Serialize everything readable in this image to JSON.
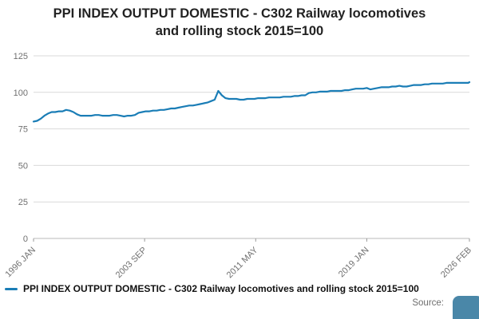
{
  "colors": {
    "series": "#1a7db6",
    "grid": "#d9d9d9",
    "axis": "#b8b8b8",
    "axis_text": "#707070",
    "logo": "#4a87a8"
  },
  "legend": {
    "label": "PPI INDEX OUTPUT DOMESTIC - C302 Railway locomotives and rolling stock 2015=100"
  },
  "footer": {
    "source_label": "Source:"
  },
  "chart_data": {
    "type": "line",
    "title": "PPI INDEX OUTPUT DOMESTIC - C302 Railway locomotives and rolling stock 2015=100",
    "xlabel": "",
    "ylabel": "",
    "ylim": [
      0,
      125
    ],
    "yticks": [
      0,
      25,
      50,
      75,
      100,
      125
    ],
    "grid": "horizontal",
    "legend_position": "bottom-left",
    "x_start": "1996-01",
    "x_end": "2026-02",
    "xticks": [
      {
        "label": "1996 JAN",
        "m": "1996-01"
      },
      {
        "label": "2003 SEP",
        "m": "2003-09"
      },
      {
        "label": "2011 MAY",
        "m": "2011-05"
      },
      {
        "label": "2019 JAN",
        "m": "2019-01"
      },
      {
        "label": "2026 FEB",
        "m": "2026-02"
      }
    ],
    "series": [
      {
        "name": "PPI INDEX OUTPUT DOMESTIC - C302 Railway locomotives and rolling stock 2015=100",
        "color": "#1a7db6",
        "points": [
          [
            "1996-01",
            80.0
          ],
          [
            "1996-04",
            80.5
          ],
          [
            "1996-07",
            82.0
          ],
          [
            "1996-10",
            84.0
          ],
          [
            "1997-01",
            85.5
          ],
          [
            "1997-04",
            86.5
          ],
          [
            "1997-07",
            86.5
          ],
          [
            "1997-10",
            87.0
          ],
          [
            "1998-01",
            87.0
          ],
          [
            "1998-04",
            88.0
          ],
          [
            "1998-07",
            87.5
          ],
          [
            "1998-10",
            86.5
          ],
          [
            "1999-01",
            85.0
          ],
          [
            "1999-04",
            84.0
          ],
          [
            "1999-07",
            84.0
          ],
          [
            "1999-10",
            84.0
          ],
          [
            "2000-01",
            84.0
          ],
          [
            "2000-04",
            84.5
          ],
          [
            "2000-07",
            84.5
          ],
          [
            "2000-10",
            84.0
          ],
          [
            "2001-01",
            84.0
          ],
          [
            "2001-04",
            84.0
          ],
          [
            "2001-07",
            84.5
          ],
          [
            "2001-10",
            84.5
          ],
          [
            "2002-01",
            84.0
          ],
          [
            "2002-04",
            83.5
          ],
          [
            "2002-07",
            84.0
          ],
          [
            "2002-10",
            84.0
          ],
          [
            "2003-01",
            84.5
          ],
          [
            "2003-04",
            86.0
          ],
          [
            "2003-07",
            86.5
          ],
          [
            "2003-10",
            87.0
          ],
          [
            "2004-01",
            87.0
          ],
          [
            "2004-04",
            87.5
          ],
          [
            "2004-07",
            87.5
          ],
          [
            "2004-10",
            88.0
          ],
          [
            "2005-01",
            88.0
          ],
          [
            "2005-04",
            88.5
          ],
          [
            "2005-07",
            89.0
          ],
          [
            "2005-10",
            89.0
          ],
          [
            "2006-01",
            89.5
          ],
          [
            "2006-04",
            90.0
          ],
          [
            "2006-07",
            90.5
          ],
          [
            "2006-10",
            91.0
          ],
          [
            "2007-01",
            91.0
          ],
          [
            "2007-04",
            91.5
          ],
          [
            "2007-07",
            92.0
          ],
          [
            "2007-10",
            92.5
          ],
          [
            "2008-01",
            93.0
          ],
          [
            "2008-04",
            94.0
          ],
          [
            "2008-07",
            95.0
          ],
          [
            "2008-10",
            101.0
          ],
          [
            "2009-01",
            98.0
          ],
          [
            "2009-04",
            96.0
          ],
          [
            "2009-07",
            95.5
          ],
          [
            "2009-10",
            95.5
          ],
          [
            "2010-01",
            95.5
          ],
          [
            "2010-04",
            95.0
          ],
          [
            "2010-07",
            95.0
          ],
          [
            "2010-10",
            95.5
          ],
          [
            "2011-01",
            95.5
          ],
          [
            "2011-04",
            95.5
          ],
          [
            "2011-07",
            96.0
          ],
          [
            "2011-10",
            96.0
          ],
          [
            "2012-01",
            96.0
          ],
          [
            "2012-04",
            96.5
          ],
          [
            "2012-07",
            96.5
          ],
          [
            "2012-10",
            96.5
          ],
          [
            "2013-01",
            96.5
          ],
          [
            "2013-04",
            97.0
          ],
          [
            "2013-07",
            97.0
          ],
          [
            "2013-10",
            97.0
          ],
          [
            "2014-01",
            97.5
          ],
          [
            "2014-04",
            97.5
          ],
          [
            "2014-07",
            98.0
          ],
          [
            "2014-10",
            98.0
          ],
          [
            "2015-01",
            99.5
          ],
          [
            "2015-04",
            100.0
          ],
          [
            "2015-07",
            100.0
          ],
          [
            "2015-10",
            100.5
          ],
          [
            "2016-01",
            100.5
          ],
          [
            "2016-04",
            100.5
          ],
          [
            "2016-07",
            101.0
          ],
          [
            "2016-10",
            101.0
          ],
          [
            "2017-01",
            101.0
          ],
          [
            "2017-04",
            101.0
          ],
          [
            "2017-07",
            101.5
          ],
          [
            "2017-10",
            101.5
          ],
          [
            "2018-01",
            102.0
          ],
          [
            "2018-04",
            102.5
          ],
          [
            "2018-07",
            102.5
          ],
          [
            "2018-10",
            102.5
          ],
          [
            "2019-01",
            103.0
          ],
          [
            "2019-04",
            102.0
          ],
          [
            "2019-07",
            102.5
          ],
          [
            "2019-10",
            103.0
          ],
          [
            "2020-01",
            103.5
          ],
          [
            "2020-04",
            103.5
          ],
          [
            "2020-07",
            103.5
          ],
          [
            "2020-10",
            104.0
          ],
          [
            "2021-01",
            104.0
          ],
          [
            "2021-04",
            104.5
          ],
          [
            "2021-07",
            104.0
          ],
          [
            "2021-10",
            104.0
          ],
          [
            "2022-01",
            104.5
          ],
          [
            "2022-04",
            105.0
          ],
          [
            "2022-07",
            105.0
          ],
          [
            "2022-10",
            105.0
          ],
          [
            "2023-01",
            105.5
          ],
          [
            "2023-04",
            105.5
          ],
          [
            "2023-07",
            106.0
          ],
          [
            "2023-10",
            106.0
          ],
          [
            "2024-01",
            106.0
          ],
          [
            "2024-04",
            106.0
          ],
          [
            "2024-07",
            106.5
          ],
          [
            "2024-10",
            106.5
          ],
          [
            "2025-01",
            106.5
          ],
          [
            "2025-04",
            106.5
          ],
          [
            "2025-07",
            106.5
          ],
          [
            "2025-10",
            106.5
          ],
          [
            "2026-01",
            106.5
          ],
          [
            "2026-02",
            107.0
          ]
        ]
      }
    ]
  }
}
